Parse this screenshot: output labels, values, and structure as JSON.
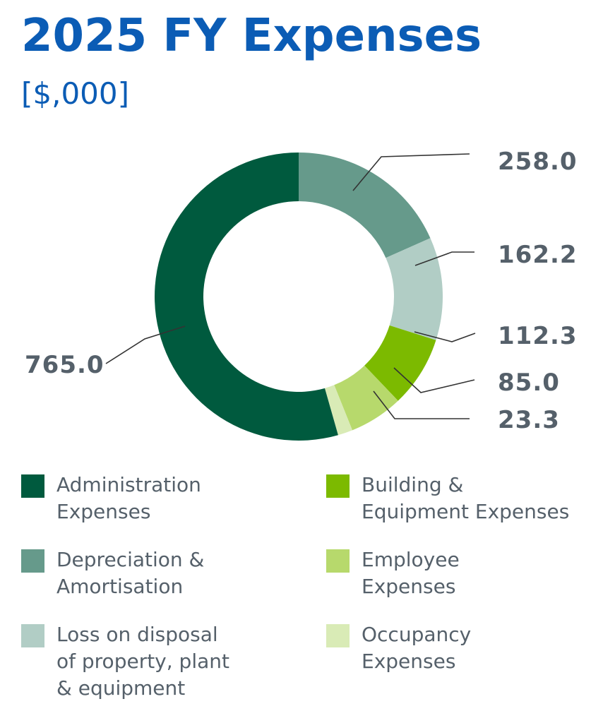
{
  "title": "2025 FY Expenses",
  "subtitle": "[$,000]",
  "chart_data": {
    "type": "pie",
    "variant": "donut",
    "start": "top, clockwise",
    "slices": [
      {
        "name": "Depreciation & Amortisation",
        "value": 258.0,
        "label": "258.0",
        "color": "#669a8b"
      },
      {
        "name": "Loss on disposal of property, plant & equipment",
        "value": 162.2,
        "label": "162.2",
        "color": "#b1cdc5"
      },
      {
        "name": "Building & Equipment Expenses",
        "value": 112.3,
        "label": "112.3",
        "color": "#7cba00"
      },
      {
        "name": "Employee Expenses",
        "value": 85.0,
        "label": "85.0",
        "color": "#b7d96c"
      },
      {
        "name": "Occupancy Expenses",
        "value": 23.3,
        "label": "23.3",
        "color": "#d9ebb6"
      },
      {
        "name": "Administration Expenses",
        "value": 765.0,
        "label": "765.0",
        "color": "#005a3e"
      }
    ],
    "legend": [
      {
        "text": "Administration\nExpenses",
        "color": "#005a3e"
      },
      {
        "text": "Depreciation &\nAmortisation",
        "color": "#669a8b"
      },
      {
        "text": "Loss on disposal\nof property, plant\n& equipment",
        "color": "#b1cdc5"
      },
      {
        "text": "Building &\nEquipment Expenses",
        "color": "#7cba00"
      },
      {
        "text": "Employee\nExpenses",
        "color": "#b7d96c"
      },
      {
        "text": "Occupancy\nExpenses",
        "color": "#d9ebb6"
      }
    ],
    "legend_placement": "bottom"
  }
}
